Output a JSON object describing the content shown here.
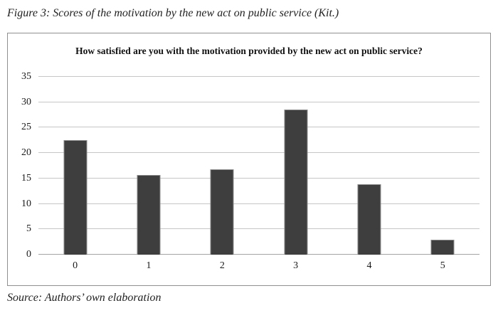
{
  "figure": {
    "caption": "Figure 3: Scores of the motivation by the new act on public service (Kit.)",
    "source": "Source: Authors’ own elaboration"
  },
  "chart_data": {
    "type": "bar",
    "title": "How satisfied are you with the motivation provided by the new act on public service?",
    "categories": [
      "0",
      "1",
      "2",
      "3",
      "4",
      "5"
    ],
    "values": [
      22.5,
      15.7,
      16.8,
      28.6,
      13.9,
      2.9
    ],
    "xlabel": "",
    "ylabel": "",
    "ylim": [
      0,
      35
    ],
    "y_ticks": [
      35,
      30,
      25,
      20,
      15,
      10,
      5,
      0
    ],
    "grid": true,
    "legend": "none",
    "bar_color": "#3e3e3e",
    "gridline_color": "#c6c6c6"
  }
}
